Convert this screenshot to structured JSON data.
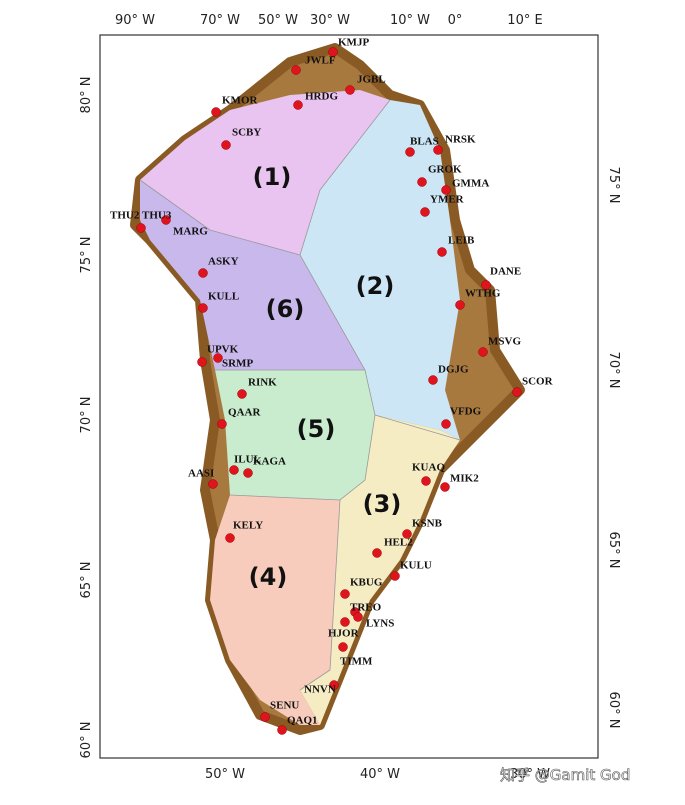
{
  "map": {
    "top_ticks": [
      "90° W",
      "70° W",
      "50° W",
      "30° W",
      "10° W",
      "0°",
      "10° E"
    ],
    "bottom_ticks": [
      "50° W",
      "40° W",
      "30° W"
    ],
    "left_ticks": [
      "80° N",
      "75° N",
      "70° N",
      "65° N",
      "60° N"
    ],
    "right_ticks": [
      "75° N",
      "70° N",
      "65° N",
      "60° N"
    ],
    "regions": [
      "(1)",
      "(2)",
      "(3)",
      "(4)",
      "(5)",
      "(6)"
    ],
    "stations": [
      "KMJP",
      "JWLF",
      "JGBL",
      "HRDG",
      "KMOR",
      "SCBY",
      "BLAS",
      "NRSK",
      "GROK",
      "GMMA",
      "YMER",
      "THU2",
      "THU3",
      "MARG",
      "LEIB",
      "DANE",
      "ASKY",
      "KULL",
      "WTHG",
      "MSVG",
      "UPVK",
      "SRMP",
      "DGJG",
      "SCOR",
      "RINK",
      "VFDG",
      "QAAR",
      "ILUL",
      "KAGA",
      "AASI",
      "KUAQ",
      "MIK2",
      "KELY",
      "KSNB",
      "HEL2",
      "KULU",
      "KBUG",
      "TREO",
      "LYNS",
      "HJOR",
      "TIMM",
      "NNVN",
      "SENU",
      "QAQ1"
    ],
    "watermark": "知乎 @Gamit God"
  }
}
